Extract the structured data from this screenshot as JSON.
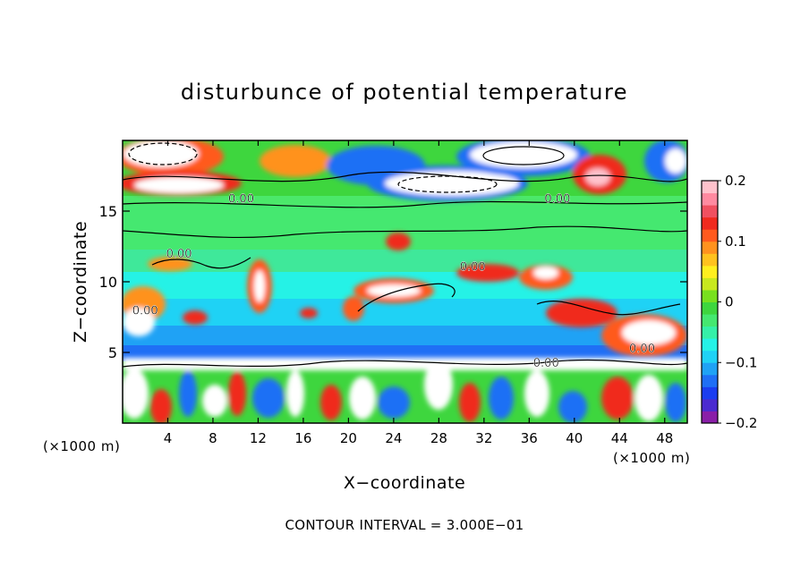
{
  "chart_data": {
    "type": "heatmap",
    "title": "disturbunce of potential temperature",
    "xlabel": "X−coordinate",
    "ylabel": "Z−coordinate",
    "x_unit": "(×1000 m)",
    "y_unit": "(×1000 m)",
    "xlim": [
      0,
      50
    ],
    "ylim": [
      0,
      20
    ],
    "x_ticks": [
      4,
      8,
      12,
      16,
      20,
      24,
      28,
      32,
      36,
      40,
      44,
      48
    ],
    "y_ticks": [
      5,
      10,
      15
    ],
    "contour_labels": [
      {
        "text": "0.00",
        "x": 10.5,
        "y": 15.6
      },
      {
        "text": "0.00",
        "x": 38.5,
        "y": 15.6
      },
      {
        "text": "0.00",
        "x": 5.0,
        "y": 11.7
      },
      {
        "text": "0.00",
        "x": 31.0,
        "y": 10.8
      },
      {
        "text": "0.00",
        "x": 2.0,
        "y": 7.7
      },
      {
        "text": "0.00",
        "x": 46.0,
        "y": 5.0
      },
      {
        "text": "0.00",
        "x": 37.5,
        "y": 4.0
      }
    ],
    "colorbar": {
      "min": -0.2,
      "max": 0.2,
      "tick_labels": [
        "0.2",
        "0.1",
        "0",
        "−0.1",
        "−0.2"
      ],
      "colors": [
        "#8a1fa8",
        "#4b2bd0",
        "#1b3df0",
        "#1f6ff5",
        "#1fa2f5",
        "#1fd2f5",
        "#25f2e6",
        "#35f0a8",
        "#45e870",
        "#3ed63e",
        "#78e01e",
        "#c8e81e",
        "#ffef1e",
        "#ffc21e",
        "#ff921e",
        "#ff5a1e",
        "#f02a1e",
        "#f05060",
        "#ff8aa0",
        "#ffc2cc"
      ]
    },
    "footer": "CONTOUR INTERVAL = 3.000E−01"
  }
}
